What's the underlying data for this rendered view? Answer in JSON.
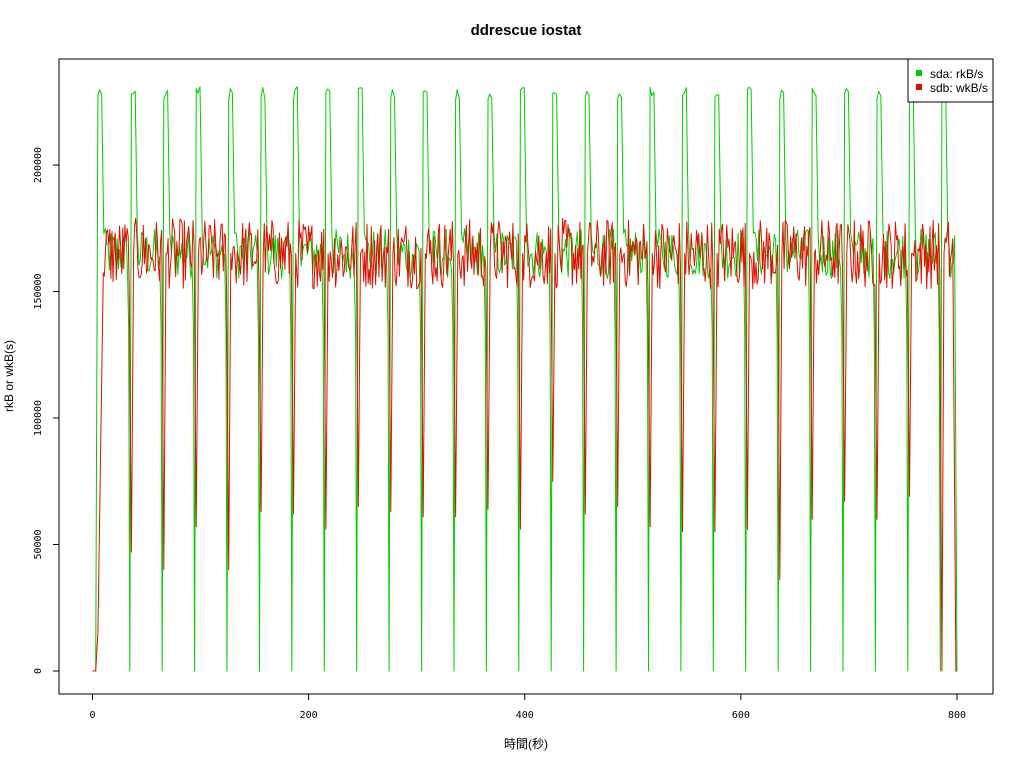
{
  "chart_data": {
    "type": "line",
    "title": "ddrescue iostat",
    "xlabel": "時間(秒)",
    "ylabel": "rkB or wkB(s)",
    "xlim": [
      0,
      800
    ],
    "ylim": [
      0,
      240000
    ],
    "x_ticks": [
      0,
      200,
      400,
      600,
      800
    ],
    "y_ticks": [
      0,
      50000,
      100000,
      150000,
      200000
    ],
    "x_tick_labels": [
      "0",
      "200",
      "400",
      "600",
      "800"
    ],
    "y_tick_labels": [
      "0",
      "50000",
      "100000",
      "150000",
      "200000"
    ],
    "grid": false,
    "legend_position": "top-right",
    "series": [
      {
        "name": "sda: rkB/s",
        "color": "#00cc00",
        "cycle_starts_s": [
          0,
          35,
          65,
          95,
          125,
          155,
          185,
          215,
          245,
          275,
          305,
          335,
          365,
          395,
          425,
          455,
          485,
          515,
          545,
          575,
          605,
          635,
          665,
          695,
          725,
          755,
          785
        ],
        "end_s": 800,
        "peak_value": 231000,
        "sustained_value": 165000,
        "min_value": 0
      },
      {
        "name": "sdb: wkB/s",
        "color": "#dd1100",
        "cycle_starts_s": [
          0,
          35,
          65,
          95,
          125,
          155,
          185,
          215,
          245,
          275,
          305,
          335,
          365,
          395,
          425,
          455,
          485,
          515,
          545,
          575,
          605,
          635,
          665,
          695,
          725,
          755,
          785
        ],
        "dip_values": [
          0,
          47000,
          40000,
          57000,
          40000,
          63000,
          62000,
          56000,
          65000,
          63000,
          61000,
          61000,
          64000,
          56000,
          75000,
          62000,
          65000,
          57000,
          55000,
          55000,
          56000,
          36000,
          60000,
          67000,
          60000,
          69000,
          0
        ],
        "end_s": 800,
        "sustained_value": 165000,
        "min_value": 0
      }
    ]
  }
}
